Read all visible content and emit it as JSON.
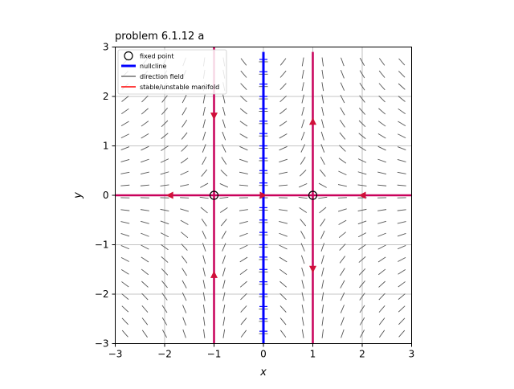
{
  "chart_data": {
    "type": "phase-portrait",
    "title": "problem 6.1.12 a",
    "xlabel": "x",
    "ylabel": "y",
    "xlim": [
      -3,
      3
    ],
    "ylim": [
      -3,
      3
    ],
    "xticks": [
      -3,
      -2,
      -1,
      0,
      1,
      2,
      3
    ],
    "yticks": [
      -3,
      -2,
      -1,
      0,
      1,
      2,
      3
    ],
    "xtick_labels": [
      "−3",
      "−2",
      "−1",
      "0",
      "1",
      "2",
      "3"
    ],
    "ytick_labels": [
      "−3",
      "−2",
      "−1",
      "0",
      "1",
      "2",
      "3"
    ],
    "grid": true,
    "legend_position": "upper left",
    "legend": [
      {
        "label": "fixed point",
        "marker": "circle"
      },
      {
        "label": "nullcline",
        "marker": "line",
        "color": "#0000ff"
      },
      {
        "label": "direction field",
        "marker": "line",
        "color": "#555555"
      },
      {
        "label": "stable/unstable manifold",
        "marker": "line",
        "color": "#ff0000"
      }
    ],
    "fixed_points": [
      {
        "x": -1,
        "y": 0
      },
      {
        "x": 1,
        "y": 0
      }
    ],
    "nullclines": [
      {
        "orientation": "vertical",
        "x": 0,
        "y_range": [
          -3,
          2.9
        ]
      }
    ],
    "manifolds": [
      {
        "orientation": "vertical",
        "x": -1,
        "y_range": [
          -3,
          3
        ],
        "arrows": [
          {
            "y": 1.6,
            "dir": "down"
          },
          {
            "y": -1.6,
            "dir": "up"
          }
        ]
      },
      {
        "orientation": "vertical",
        "x": 1,
        "y_range": [
          -3,
          2.9
        ],
        "arrows": [
          {
            "y": 1.5,
            "dir": "up"
          },
          {
            "y": -1.5,
            "dir": "down"
          }
        ]
      },
      {
        "orientation": "horizontal",
        "y": 0,
        "x_range": [
          -3,
          3
        ],
        "arrows": [
          {
            "x": -1.9,
            "dir": "left"
          },
          {
            "x": 0,
            "dir": "right"
          },
          {
            "x": 2.0,
            "dir": "left"
          }
        ]
      }
    ],
    "colors": {
      "nullcline": "#0000ff",
      "manifold": "#c8005a",
      "manifold_arrow": "#d0103a",
      "field": "#555555",
      "grid": "#b0b0b0",
      "axes": "#000000"
    },
    "direction_field": {
      "x_start": -2.8,
      "x_step": 0.4,
      "y_start": -2.8,
      "y_step": 0.25,
      "nx": 15,
      "ny": 23
    }
  }
}
